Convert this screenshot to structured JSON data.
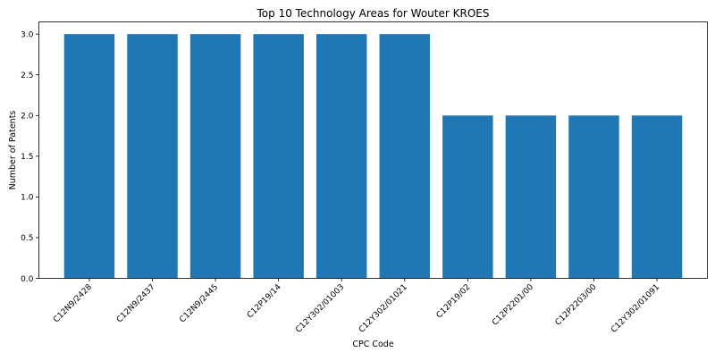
{
  "chart_data": {
    "type": "bar",
    "title": "Top 10 Technology Areas for Wouter KROES",
    "xlabel": "CPC Code",
    "ylabel": "Number of Patents",
    "categories": [
      "C12N9/2428",
      "C12N9/2437",
      "C12N9/2445",
      "C12P19/14",
      "C12Y302/01003",
      "C12Y302/01021",
      "C12P19/02",
      "C12P2201/00",
      "C12P2203/00",
      "C12Y302/01091"
    ],
    "values": [
      3,
      3,
      3,
      3,
      3,
      3,
      2,
      2,
      2,
      2
    ],
    "ylim": [
      0,
      3.15
    ],
    "yticks": [
      0.0,
      0.5,
      1.0,
      1.5,
      2.0,
      2.5,
      3.0
    ],
    "ytick_labels": [
      "0.0",
      "0.5",
      "1.0",
      "1.5",
      "2.0",
      "2.5",
      "3.0"
    ],
    "bar_color": "#1f77b4",
    "grid": false,
    "legend": "none"
  }
}
